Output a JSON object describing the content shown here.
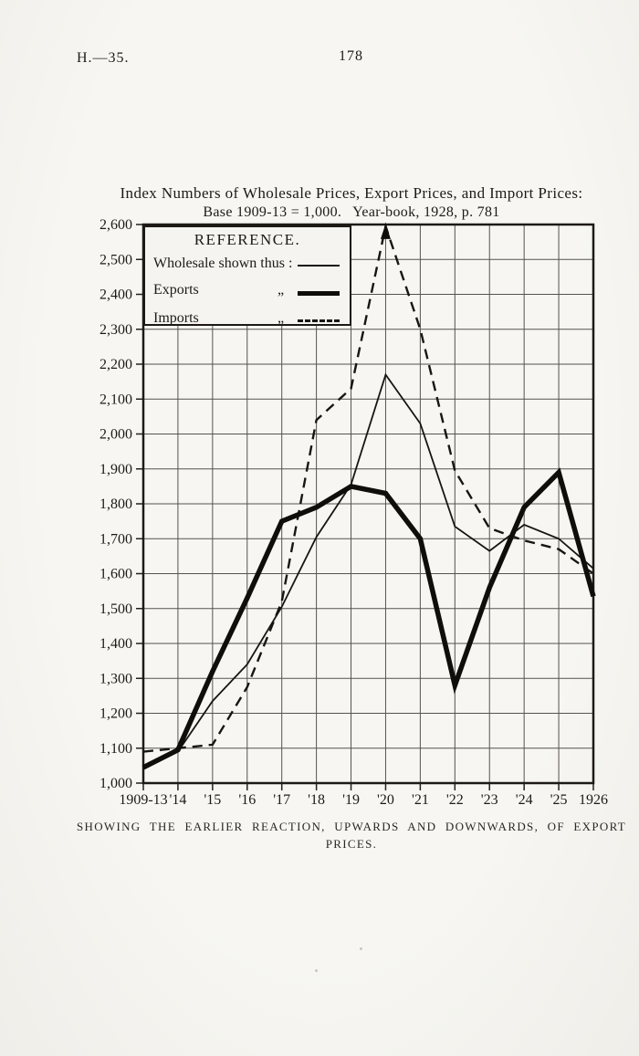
{
  "page": {
    "header_left": "H.—35.",
    "page_number": "178"
  },
  "figure": {
    "title_line1": "Index Numbers of Wholesale Prices, Export Prices, and Import Prices:",
    "title_line2": "Base 1909-13 = 1,000.  Year-book, 1928, p. 781",
    "caption_line1": "SHOWING THE EARLIER REACTION, UPWARDS AND DOWNWARDS, OF EXPORT",
    "caption_line2": "PRICES."
  },
  "legend": {
    "title": "REFERENCE.",
    "rows": [
      {
        "label": "Wholesale shown thus :",
        "ditto": "",
        "style": "thin"
      },
      {
        "label": "Exports",
        "ditto": "„",
        "style": "thick"
      },
      {
        "label": "Imports",
        "ditto": "„",
        "style": "dashed"
      }
    ]
  },
  "chart_data": {
    "type": "line",
    "title": "Index Numbers of Wholesale Prices, Export Prices, and Import Prices: Base 1909-13 = 1,000. Year-book, 1928, p. 781",
    "categories": [
      "1909-13",
      "'14",
      "'15",
      "'16",
      "'17",
      "'18",
      "'19",
      "'20",
      "'21",
      "'22",
      "'23",
      "'24",
      "'25",
      "1926"
    ],
    "series": [
      {
        "name": "Wholesale",
        "style": "thin",
        "values": [
          1040,
          1090,
          1235,
          1340,
          1505,
          1705,
          1855,
          2170,
          2030,
          1735,
          1665,
          1740,
          1700,
          1615
        ]
      },
      {
        "name": "Exports",
        "style": "thick",
        "values": [
          1045,
          1095,
          1320,
          1530,
          1750,
          1790,
          1850,
          1830,
          1700,
          1280,
          1560,
          1790,
          1890,
          1535
        ]
      },
      {
        "name": "Imports",
        "style": "dashed",
        "values": [
          1090,
          1100,
          1110,
          1275,
          1520,
          2040,
          2130,
          2595,
          2300,
          1895,
          1730,
          1695,
          1670,
          1600
        ]
      }
    ],
    "xlabel": "",
    "ylabel": "",
    "ylim": [
      1000,
      2600
    ],
    "ytick_step": 100,
    "grid": true,
    "legend_position": "top-left",
    "annotations": [
      "up-arrowhead at Imports 1920 peak touching 2,600 frame"
    ],
    "ink_color": "#181512",
    "paper_color": "#f5f4f0"
  }
}
